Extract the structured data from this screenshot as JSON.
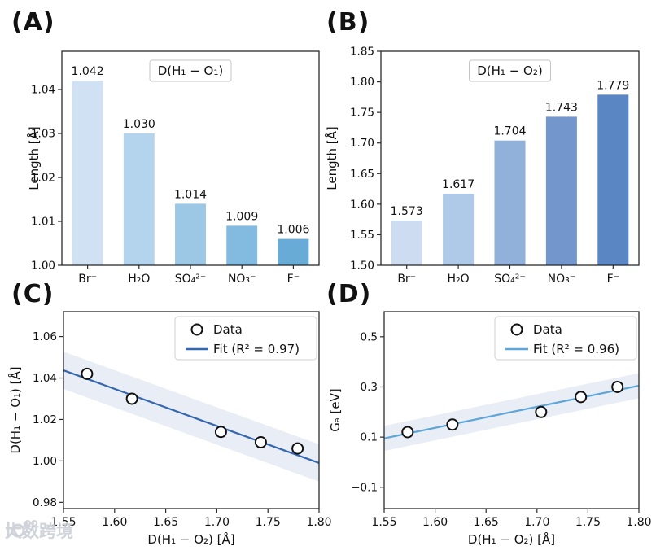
{
  "figure": {
    "panel_labels": [
      "(A)",
      "(B)",
      "(C)",
      "(D)"
    ]
  },
  "watermark": {
    "text": "大数跨境"
  },
  "chart_data": [
    {
      "type": "bar",
      "panel": "(A)",
      "title": "D(H₁ − O₁)",
      "categories": [
        "Br⁻",
        "H₂O",
        "SO₄²⁻",
        "NO₃⁻",
        "F⁻"
      ],
      "values": [
        1.042,
        1.03,
        1.014,
        1.009,
        1.006
      ],
      "value_labels": [
        "1.042",
        "1.030",
        "1.014",
        "1.009",
        "1.006"
      ],
      "bar_colors": [
        "#cfe1f2",
        "#b4d3ec",
        "#9cc8e6",
        "#82bbdf",
        "#68abd6"
      ],
      "xlabel": "",
      "ylabel": "Length [Å]",
      "ylim": [
        1.0,
        1.0487
      ],
      "yticks": [
        1.0,
        1.01,
        1.02,
        1.03,
        1.04
      ],
      "ytick_labels": [
        "1.00",
        "1.01",
        "1.02",
        "1.03",
        "1.04"
      ],
      "grid": false
    },
    {
      "type": "bar",
      "panel": "(B)",
      "title": "D(H₁ − O₂)",
      "categories": [
        "Br⁻",
        "H₂O",
        "SO₄²⁻",
        "NO₃⁻",
        "F⁻"
      ],
      "values": [
        1.573,
        1.617,
        1.704,
        1.743,
        1.779
      ],
      "value_labels": [
        "1.573",
        "1.617",
        "1.704",
        "1.743",
        "1.779"
      ],
      "bar_colors": [
        "#cddcf0",
        "#afc9e8",
        "#91b1da",
        "#7397cd",
        "#5b86c4"
      ],
      "xlabel": "",
      "ylabel": "Length [Å]",
      "ylim": [
        1.5,
        1.85
      ],
      "yticks": [
        1.5,
        1.55,
        1.6,
        1.65,
        1.7,
        1.75,
        1.8,
        1.85
      ],
      "ytick_labels": [
        "1.50",
        "1.55",
        "1.60",
        "1.65",
        "1.70",
        "1.75",
        "1.80",
        "1.85"
      ],
      "grid": false
    },
    {
      "type": "scatter",
      "panel": "(C)",
      "x": [
        1.573,
        1.617,
        1.704,
        1.743,
        1.779
      ],
      "y": [
        1.042,
        1.03,
        1.014,
        1.009,
        1.006
      ],
      "legend_data_label": "Data",
      "fit": {
        "label": "Fit (R² = 0.97)",
        "x": [
          1.55,
          1.8
        ],
        "y": [
          1.0437,
          0.999
        ],
        "band": 0.009,
        "color": "#3567ad",
        "band_color": "#e8edf6"
      },
      "xlabel": "D(H₁ − O₂) [Å]",
      "ylabel": "D(H₁ − O₁) [Å]",
      "xlim": [
        1.55,
        1.8
      ],
      "ylim": [
        0.977,
        1.072
      ],
      "xticks": [
        1.55,
        1.6,
        1.65,
        1.7,
        1.75,
        1.8
      ],
      "xtick_labels": [
        "1.55",
        "1.60",
        "1.65",
        "1.70",
        "1.75",
        "1.80"
      ],
      "yticks": [
        0.98,
        1.0,
        1.02,
        1.04,
        1.06
      ],
      "ytick_labels": [
        "0.98",
        "1.00",
        "1.02",
        "1.04",
        "1.06"
      ],
      "legend_position": "upper right",
      "grid": false
    },
    {
      "type": "scatter",
      "panel": "(D)",
      "x": [
        1.573,
        1.617,
        1.704,
        1.743,
        1.779
      ],
      "y": [
        0.12,
        0.15,
        0.2,
        0.26,
        0.3
      ],
      "legend_data_label": "Data",
      "fit": {
        "label": "Fit (R² = 0.96)",
        "x": [
          1.55,
          1.8
        ],
        "y": [
          0.095,
          0.305
        ],
        "band": 0.05,
        "color": "#5ea5d8",
        "band_color": "#e8edf6"
      },
      "xlabel": "D(H₁ − O₂) [Å]",
      "ylabel": "Gₐ [eV]",
      "xlim": [
        1.55,
        1.8
      ],
      "ylim": [
        -0.185,
        0.6
      ],
      "xticks": [
        1.55,
        1.6,
        1.65,
        1.7,
        1.75,
        1.8
      ],
      "xtick_labels": [
        "1.55",
        "1.60",
        "1.65",
        "1.70",
        "1.75",
        "1.80"
      ],
      "yticks": [
        -0.1,
        0.1,
        0.3,
        0.5
      ],
      "ytick_labels": [
        "−0.1",
        "0.1",
        "0.3",
        "0.5"
      ],
      "legend_position": "upper right",
      "grid": false
    }
  ]
}
